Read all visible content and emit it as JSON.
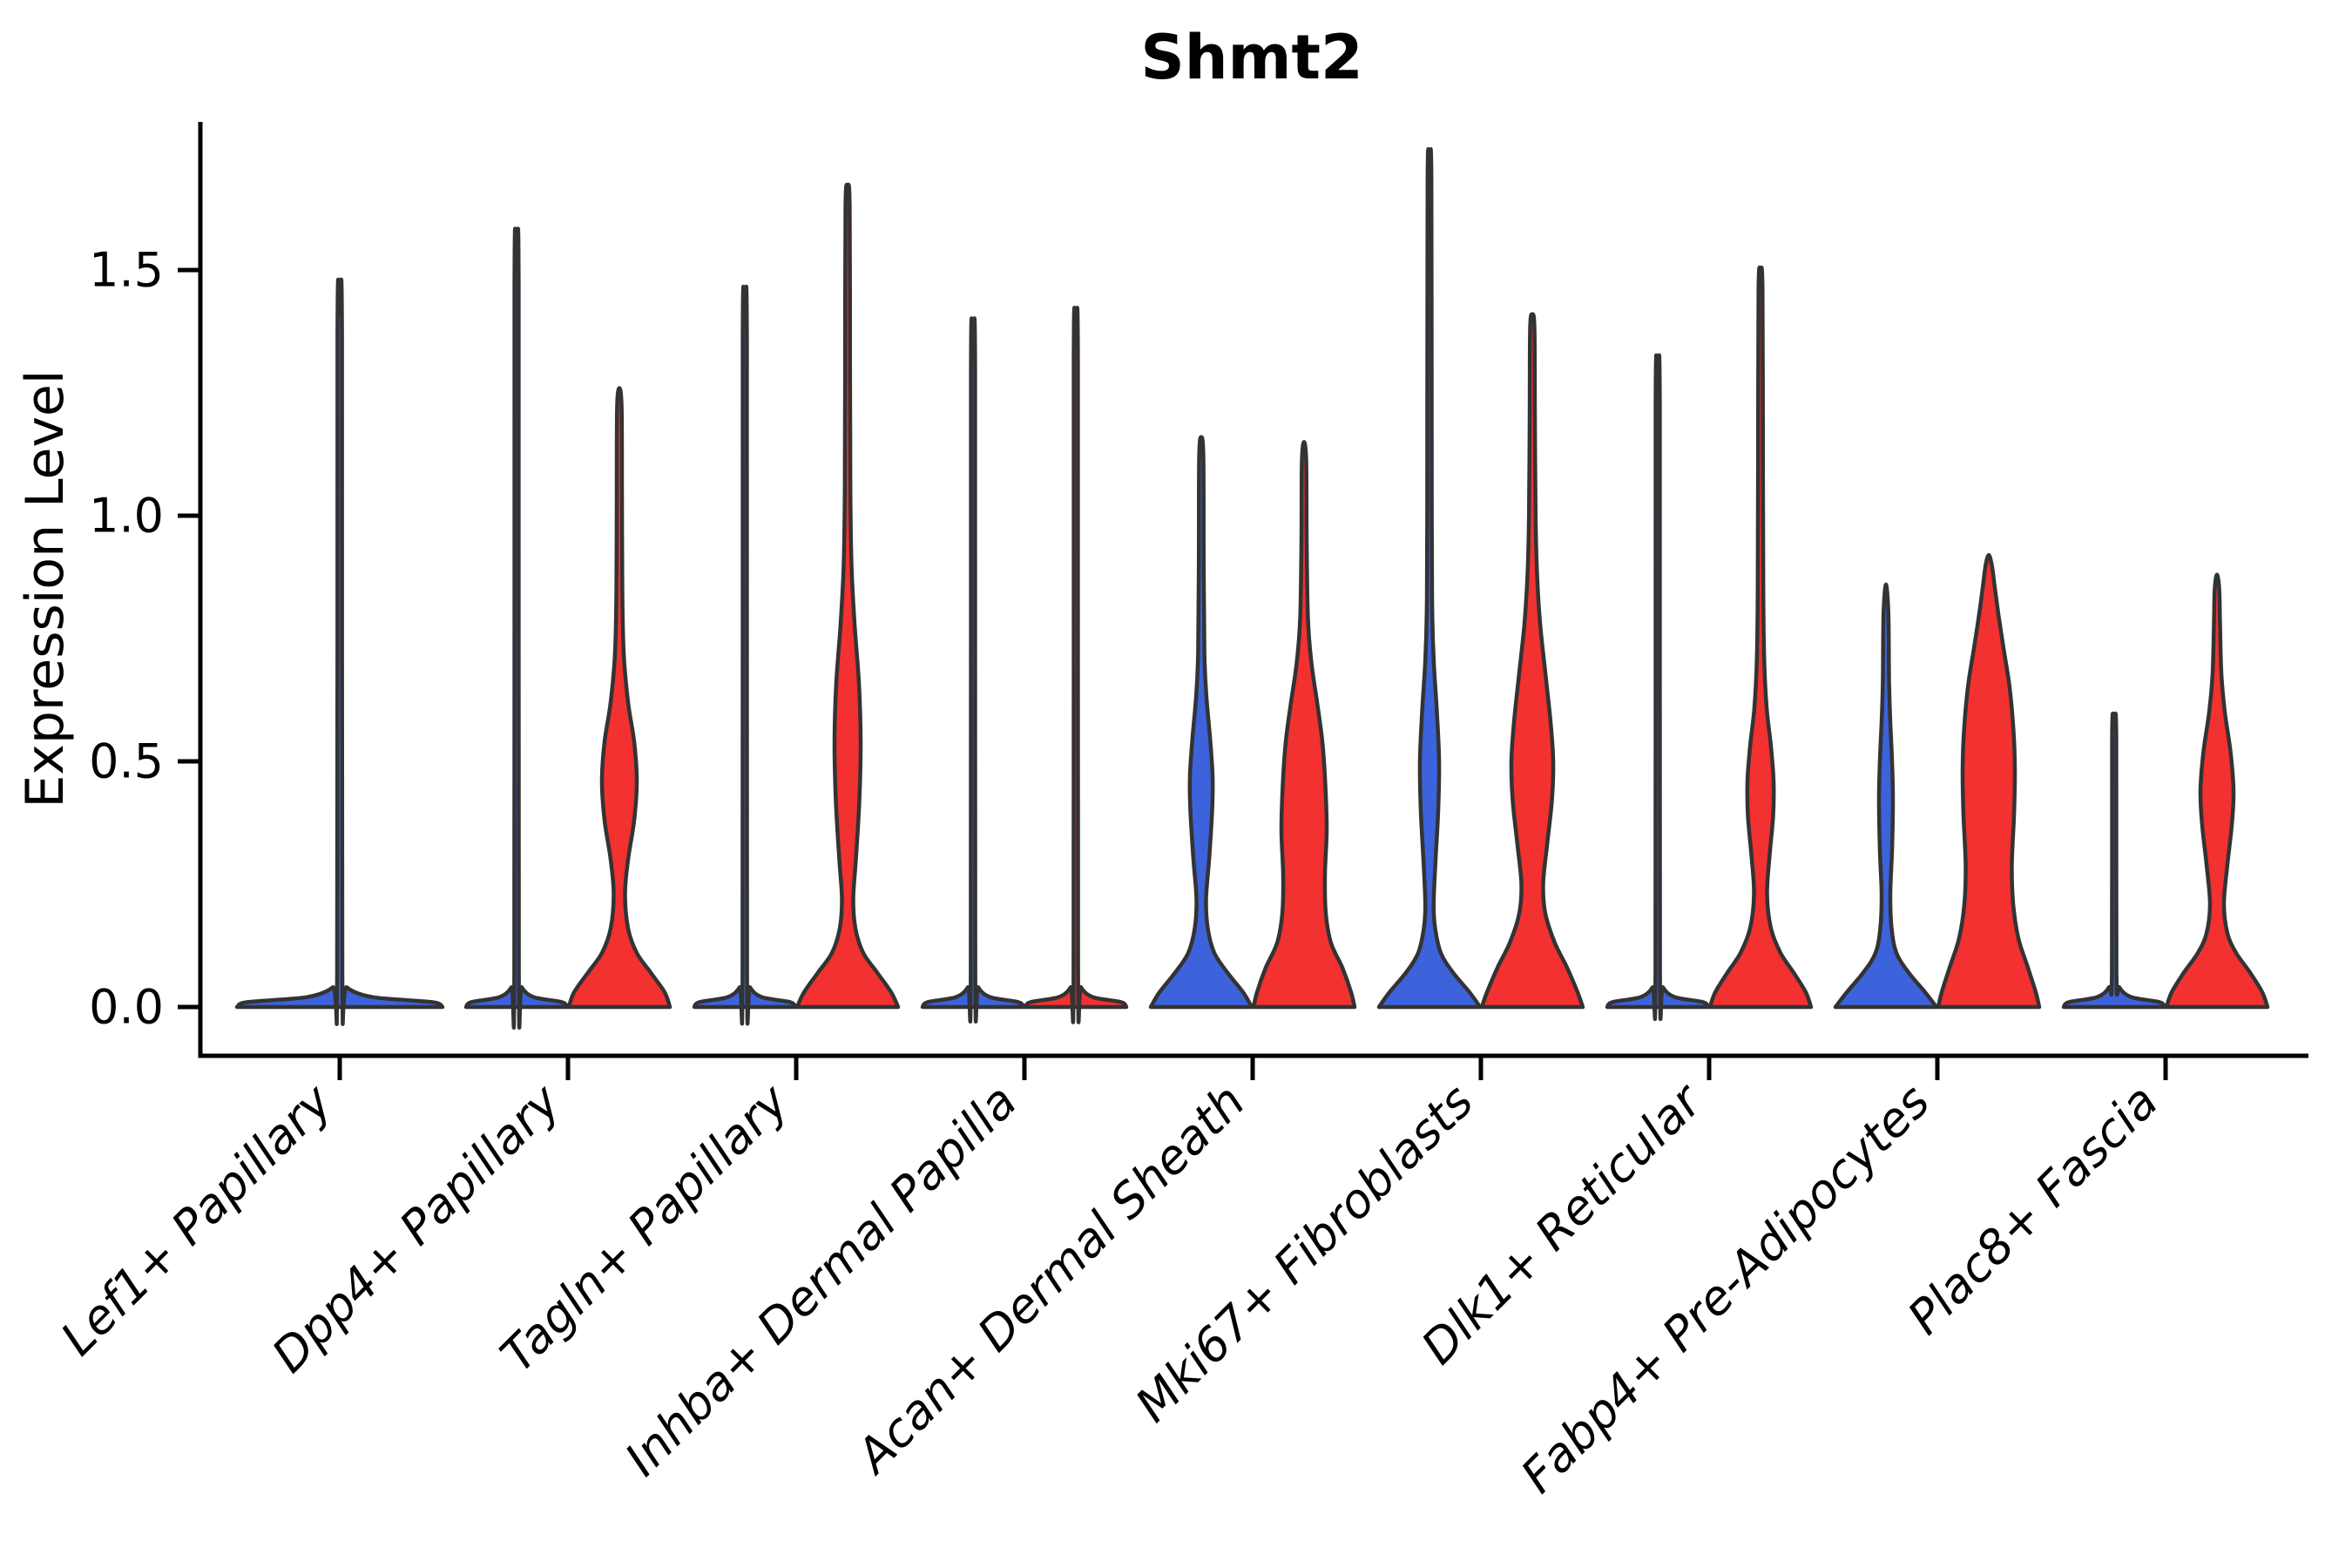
{
  "title": "Shmt2",
  "y_axis": {
    "label": "Expression Level"
  },
  "colors": {
    "blue": "#3C63DB",
    "red": "#F23130",
    "edge": "#333333",
    "axis": "#000000",
    "background": "#FFFFFF"
  },
  "chart_data": {
    "type": "violin",
    "title": "Shmt2",
    "xlabel": "",
    "ylabel": "Expression Level",
    "ylim": [
      0,
      1.8
    ],
    "yticks": [
      0.0,
      0.5,
      1.0,
      1.5
    ],
    "ytick_labels": [
      "0.0",
      "0.5",
      "1.0",
      "1.5"
    ],
    "legend": "none",
    "grid": false,
    "categories": [
      "Lef1+ Papillary",
      "Dpp4+ Papillary",
      "Tagln+ Papillary",
      "Inhba+ Dermal Papilla",
      "Acan+ Dermal Sheath",
      "Mki67+ Fibroblasts",
      "Dlk1+ Reticular",
      "Fabp4+ Pre-Adipocytes",
      "Plac8+ Fascia"
    ],
    "series": [
      {
        "name": "blue",
        "color": "#3C63DB",
        "max_values": [
          1.41,
          1.5,
          1.39,
          1.33,
          1.15,
          1.72,
          1.26,
          0.86,
          0.58
        ]
      },
      {
        "name": "red",
        "color": "#F23130",
        "max_values": [
          null,
          1.26,
          1.67,
          1.35,
          1.15,
          1.41,
          1.5,
          0.92,
          0.88
        ]
      }
    ],
    "violins": [
      {
        "category_index": 0,
        "category": "Lef1+ Papillary",
        "side": "center",
        "color": "blue",
        "top": 1.41,
        "profile": [
          [
            0,
            118
          ],
          [
            0.01,
            106
          ],
          [
            0.02,
            38
          ],
          [
            0.04,
            8
          ],
          [
            0.07,
            3
          ],
          [
            1.37,
            2.6
          ],
          [
            1.41,
            0
          ]
        ]
      },
      {
        "category_index": 1,
        "category": "Dpp4+ Papillary",
        "side": "left",
        "color": "blue",
        "top": 1.5,
        "profile": [
          [
            0,
            58
          ],
          [
            0.01,
            52
          ],
          [
            0.02,
            20
          ],
          [
            0.04,
            6
          ],
          [
            0.07,
            2.6
          ],
          [
            1.47,
            2.4
          ],
          [
            1.5,
            0
          ]
        ]
      },
      {
        "category_index": 1,
        "category": "Dpp4+ Papillary",
        "side": "right",
        "color": "red",
        "top": 1.26,
        "profile": [
          [
            0,
            58
          ],
          [
            0.03,
            52
          ],
          [
            0.07,
            36
          ],
          [
            0.11,
            20
          ],
          [
            0.16,
            10
          ],
          [
            0.23,
            6.5
          ],
          [
            0.3,
            10
          ],
          [
            0.38,
            17
          ],
          [
            0.46,
            20
          ],
          [
            0.54,
            17
          ],
          [
            0.62,
            10
          ],
          [
            0.72,
            5
          ],
          [
            0.85,
            3.4
          ],
          [
            1.05,
            3
          ],
          [
            1.22,
            2.6
          ],
          [
            1.26,
            0
          ]
        ]
      },
      {
        "category_index": 2,
        "category": "Tagln+ Papillary",
        "side": "left",
        "color": "blue",
        "top": 1.39,
        "profile": [
          [
            0,
            58
          ],
          [
            0.01,
            52
          ],
          [
            0.02,
            20
          ],
          [
            0.04,
            6
          ],
          [
            0.07,
            2.6
          ],
          [
            1.36,
            2.4
          ],
          [
            1.39,
            0
          ]
        ]
      },
      {
        "category_index": 2,
        "category": "Tagln+ Papillary",
        "side": "right",
        "color": "red",
        "top": 1.67,
        "profile": [
          [
            0,
            58
          ],
          [
            0.03,
            50
          ],
          [
            0.07,
            34
          ],
          [
            0.11,
            18
          ],
          [
            0.16,
            9
          ],
          [
            0.22,
            6.5
          ],
          [
            0.3,
            9.5
          ],
          [
            0.42,
            13.5
          ],
          [
            0.54,
            15
          ],
          [
            0.66,
            13
          ],
          [
            0.78,
            8
          ],
          [
            0.9,
            4.5
          ],
          [
            1.05,
            3.2
          ],
          [
            1.3,
            2.8
          ],
          [
            1.63,
            2.4
          ],
          [
            1.67,
            0
          ]
        ]
      },
      {
        "category_index": 3,
        "category": "Inhba+ Dermal Papilla",
        "side": "left",
        "color": "blue",
        "top": 1.33,
        "profile": [
          [
            0,
            58
          ],
          [
            0.01,
            52
          ],
          [
            0.02,
            20
          ],
          [
            0.04,
            6
          ],
          [
            0.07,
            2.6
          ],
          [
            1.3,
            2.4
          ],
          [
            1.33,
            0
          ]
        ]
      },
      {
        "category_index": 3,
        "category": "Inhba+ Dermal Papilla",
        "side": "right",
        "color": "red",
        "top": 1.35,
        "profile": [
          [
            0,
            58
          ],
          [
            0.01,
            52
          ],
          [
            0.02,
            20
          ],
          [
            0.04,
            6
          ],
          [
            0.07,
            2.6
          ],
          [
            1.32,
            2.4
          ],
          [
            1.35,
            0
          ]
        ]
      },
      {
        "category_index": 4,
        "category": "Acan+ Dermal Sheath",
        "side": "left",
        "color": "blue",
        "top": 1.16,
        "profile": [
          [
            0,
            58
          ],
          [
            0.03,
            48
          ],
          [
            0.07,
            30
          ],
          [
            0.11,
            15
          ],
          [
            0.16,
            7.5
          ],
          [
            0.22,
            5.5
          ],
          [
            0.3,
            9
          ],
          [
            0.4,
            12.5
          ],
          [
            0.47,
            13
          ],
          [
            0.55,
            10
          ],
          [
            0.63,
            6
          ],
          [
            0.72,
            3.6
          ],
          [
            0.9,
            2.8
          ],
          [
            1.12,
            2.4
          ],
          [
            1.16,
            0
          ]
        ]
      },
      {
        "category_index": 4,
        "category": "Acan+ Dermal Sheath",
        "side": "right",
        "color": "red",
        "top": 1.15,
        "profile": [
          [
            0,
            58
          ],
          [
            0.03,
            54
          ],
          [
            0.08,
            44
          ],
          [
            0.13,
            31
          ],
          [
            0.19,
            25
          ],
          [
            0.27,
            24
          ],
          [
            0.36,
            26
          ],
          [
            0.45,
            24.5
          ],
          [
            0.54,
            21
          ],
          [
            0.62,
            15
          ],
          [
            0.7,
            8.5
          ],
          [
            0.79,
            4.5
          ],
          [
            0.95,
            3
          ],
          [
            1.11,
            2.5
          ],
          [
            1.15,
            0
          ]
        ]
      },
      {
        "category_index": 5,
        "category": "Mki67+ Fibroblasts",
        "side": "left",
        "color": "blue",
        "top": 1.72,
        "profile": [
          [
            0,
            58
          ],
          [
            0.03,
            46
          ],
          [
            0.07,
            27
          ],
          [
            0.11,
            13
          ],
          [
            0.16,
            6.5
          ],
          [
            0.21,
            4.8
          ],
          [
            0.3,
            7
          ],
          [
            0.4,
            10
          ],
          [
            0.5,
            11
          ],
          [
            0.6,
            8.5
          ],
          [
            0.7,
            5
          ],
          [
            0.8,
            3.2
          ],
          [
            1.0,
            2.6
          ],
          [
            1.68,
            2.2
          ],
          [
            1.72,
            0
          ]
        ]
      },
      {
        "category_index": 5,
        "category": "Mki67+ Fibroblasts",
        "side": "right",
        "color": "red",
        "top": 1.41,
        "profile": [
          [
            0,
            58
          ],
          [
            0.03,
            52
          ],
          [
            0.08,
            40
          ],
          [
            0.13,
            26
          ],
          [
            0.19,
            15
          ],
          [
            0.25,
            12.5
          ],
          [
            0.33,
            17
          ],
          [
            0.42,
            22.5
          ],
          [
            0.5,
            24
          ],
          [
            0.58,
            21
          ],
          [
            0.68,
            15
          ],
          [
            0.78,
            9
          ],
          [
            0.88,
            5.5
          ],
          [
            1.0,
            3.8
          ],
          [
            1.2,
            3
          ],
          [
            1.38,
            2.5
          ],
          [
            1.41,
            0
          ]
        ]
      },
      {
        "category_index": 6,
        "category": "Dlk1+ Reticular",
        "side": "left",
        "color": "blue",
        "top": 1.26,
        "profile": [
          [
            0,
            58
          ],
          [
            0.01,
            52
          ],
          [
            0.02,
            20
          ],
          [
            0.04,
            6
          ],
          [
            0.07,
            2.6
          ],
          [
            1.23,
            2.4
          ],
          [
            1.26,
            0
          ]
        ]
      },
      {
        "category_index": 6,
        "category": "Dlk1+ Reticular",
        "side": "right",
        "color": "red",
        "top": 1.5,
        "profile": [
          [
            0,
            58
          ],
          [
            0.03,
            52
          ],
          [
            0.07,
            38
          ],
          [
            0.11,
            23
          ],
          [
            0.16,
            12
          ],
          [
            0.23,
            7.5
          ],
          [
            0.31,
            10.5
          ],
          [
            0.39,
            14.5
          ],
          [
            0.46,
            15
          ],
          [
            0.53,
            12
          ],
          [
            0.61,
            7
          ],
          [
            0.71,
            4.2
          ],
          [
            0.85,
            3.2
          ],
          [
            1.1,
            2.8
          ],
          [
            1.46,
            2.3
          ],
          [
            1.5,
            0
          ]
        ]
      },
      {
        "category_index": 7,
        "category": "Fabp4+ Pre-Adipocytes",
        "side": "left",
        "color": "blue",
        "top": 0.86,
        "profile": [
          [
            0,
            58
          ],
          [
            0.03,
            45
          ],
          [
            0.07,
            26
          ],
          [
            0.11,
            12
          ],
          [
            0.16,
            6.5
          ],
          [
            0.23,
            5
          ],
          [
            0.32,
            7
          ],
          [
            0.42,
            8
          ],
          [
            0.5,
            7
          ],
          [
            0.58,
            5
          ],
          [
            0.66,
            3.6
          ],
          [
            0.8,
            2.8
          ],
          [
            0.86,
            0
          ]
        ]
      },
      {
        "category_index": 7,
        "category": "Fabp4+ Pre-Adipocytes",
        "side": "right",
        "color": "red",
        "top": 0.92,
        "profile": [
          [
            0,
            58
          ],
          [
            0.03,
            54
          ],
          [
            0.08,
            45
          ],
          [
            0.14,
            34
          ],
          [
            0.21,
            28
          ],
          [
            0.29,
            26.5
          ],
          [
            0.39,
            29
          ],
          [
            0.48,
            30
          ],
          [
            0.56,
            28.5
          ],
          [
            0.65,
            24
          ],
          [
            0.73,
            17
          ],
          [
            0.8,
            11
          ],
          [
            0.86,
            6.5
          ],
          [
            0.9,
            3.5
          ],
          [
            0.92,
            0
          ]
        ]
      },
      {
        "category_index": 8,
        "category": "Plac8+ Fascia",
        "side": "left",
        "color": "blue",
        "top": 0.58,
        "profile": [
          [
            0,
            58
          ],
          [
            0.01,
            52
          ],
          [
            0.02,
            20
          ],
          [
            0.04,
            6
          ],
          [
            0.07,
            2.6
          ],
          [
            0.55,
            2.4
          ],
          [
            0.58,
            0
          ]
        ]
      },
      {
        "category_index": 8,
        "category": "Plac8+ Fascia",
        "side": "right",
        "color": "red",
        "top": 0.88,
        "profile": [
          [
            0,
            58
          ],
          [
            0.03,
            52
          ],
          [
            0.07,
            38
          ],
          [
            0.11,
            22
          ],
          [
            0.15,
            12
          ],
          [
            0.21,
            8
          ],
          [
            0.29,
            12
          ],
          [
            0.37,
            17
          ],
          [
            0.44,
            19
          ],
          [
            0.52,
            15.5
          ],
          [
            0.6,
            9
          ],
          [
            0.68,
            5
          ],
          [
            0.78,
            3.5
          ],
          [
            0.85,
            2.6
          ],
          [
            0.88,
            0
          ]
        ]
      }
    ]
  }
}
